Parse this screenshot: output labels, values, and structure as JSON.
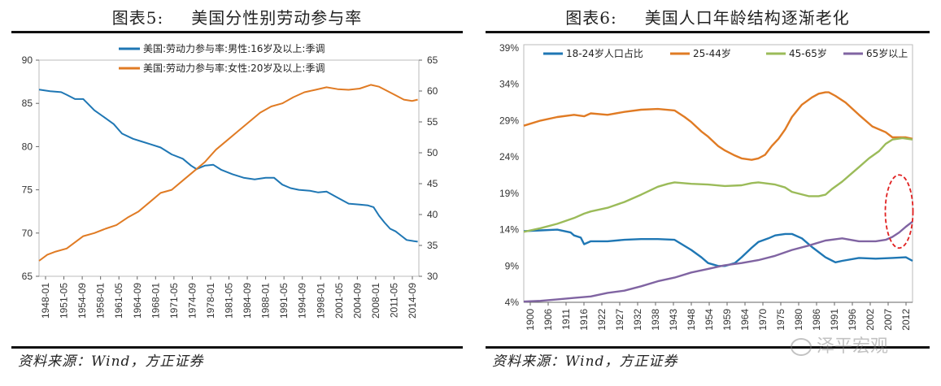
{
  "left": {
    "title_num": "图表5:",
    "title_text": "美国分性别劳动参与率",
    "source": "资料来源：Wind，方正证券"
  },
  "right": {
    "title_num": "图表6:",
    "title_text": "美国人口年龄结构逐渐老化",
    "source": "资料来源：Wind，方正证券"
  },
  "watermark": "泽平宏观",
  "colors": {
    "blue": "#1f77b4",
    "orange": "#e07b24",
    "green": "#9bbb59",
    "purple": "#8064a2",
    "annotation": "#e02020"
  },
  "chart_data": [
    {
      "type": "line",
      "title": "美国分性别劳动参与率",
      "x_ticks": [
        "1948-01",
        "1951-05",
        "1954-09",
        "1958-01",
        "1961-05",
        "1964-09",
        "1968-01",
        "1971-05",
        "1974-09",
        "1978-01",
        "1981-05",
        "1984-09",
        "1988-01",
        "1991-05",
        "1994-09",
        "1998-01",
        "2001-05",
        "2004-09",
        "2008-01",
        "2011-05",
        "2014-09"
      ],
      "xlim": [
        1948.0,
        2016.7
      ],
      "y_left": {
        "lim": [
          65,
          90
        ],
        "ticks": [
          65,
          70,
          75,
          80,
          85,
          90
        ]
      },
      "y_right": {
        "lim": [
          30,
          65
        ],
        "ticks": [
          30,
          35,
          40,
          45,
          50,
          55,
          60,
          65
        ]
      },
      "legend_position": "top",
      "grid": false,
      "series": [
        {
          "name": "美国:劳动力参与率:男性:16岁及以上:季调",
          "axis": "left",
          "color": "#1f77b4",
          "x": [
            1948.0,
            1950.0,
            1952.0,
            1953.0,
            1954.5,
            1956.0,
            1958.0,
            1960.0,
            1961.5,
            1963.0,
            1965.0,
            1966.5,
            1968.0,
            1970.0,
            1972.0,
            1974.0,
            1975.5,
            1976.5,
            1978.0,
            1979.5,
            1981.0,
            1983.0,
            1985.0,
            1987.0,
            1989.0,
            1990.5,
            1992.0,
            1993.5,
            1995.0,
            1997.0,
            1998.5,
            2000.0,
            2002.0,
            2004.0,
            2006.0,
            2007.5,
            2008.5,
            2009.5,
            2010.5,
            2011.5,
            2012.5,
            2013.5,
            2014.5,
            2015.5,
            2016.5
          ],
          "y": [
            86.6,
            86.4,
            86.3,
            86.0,
            85.5,
            85.5,
            84.2,
            83.3,
            82.6,
            81.5,
            80.9,
            80.6,
            80.3,
            79.9,
            79.1,
            78.6,
            77.8,
            77.4,
            77.8,
            77.9,
            77.3,
            76.8,
            76.4,
            76.2,
            76.4,
            76.4,
            75.6,
            75.2,
            75.0,
            74.9,
            74.7,
            74.8,
            74.1,
            73.4,
            73.3,
            73.2,
            73.0,
            72.0,
            71.2,
            70.5,
            70.2,
            69.7,
            69.2,
            69.1,
            69.0
          ]
        },
        {
          "name": "美国:劳动力参与率:女性:20岁及以上:季调",
          "axis": "right",
          "color": "#e07b24",
          "x": [
            1948.0,
            1949.5,
            1951.0,
            1953.0,
            1954.5,
            1956.0,
            1958.0,
            1960.0,
            1962.0,
            1964.0,
            1966.0,
            1968.0,
            1970.0,
            1972.0,
            1974.0,
            1976.0,
            1978.0,
            1980.0,
            1982.0,
            1984.0,
            1986.0,
            1988.0,
            1990.0,
            1992.0,
            1994.0,
            1996.0,
            1998.0,
            2000.0,
            2002.0,
            2004.0,
            2006.0,
            2008.0,
            2009.5,
            2011.0,
            2012.5,
            2014.0,
            2015.5,
            2016.5
          ],
          "y": [
            32.5,
            33.5,
            34.0,
            34.5,
            35.5,
            36.5,
            37.0,
            37.7,
            38.3,
            39.5,
            40.5,
            42.0,
            43.5,
            44.0,
            45.5,
            47.0,
            48.5,
            50.5,
            52.0,
            53.5,
            55.0,
            56.5,
            57.5,
            58.0,
            59.0,
            59.8,
            60.2,
            60.6,
            60.3,
            60.2,
            60.4,
            61.0,
            60.7,
            60.0,
            59.3,
            58.6,
            58.4,
            58.6
          ]
        }
      ]
    },
    {
      "type": "line",
      "title": "美国人口年龄结构逐渐老化",
      "x_ticks": [
        "1900",
        "1906",
        "1911",
        "1916",
        "1922",
        "1927",
        "1932",
        "1938",
        "1943",
        "1948",
        "1954",
        "1959",
        "1964",
        "1970",
        "1975",
        "1980",
        "1986",
        "1991",
        "1996",
        "2002",
        "2007",
        "2012"
      ],
      "xlim": [
        1900,
        2016
      ],
      "ylim": [
        4,
        39
      ],
      "y_ticks": [
        "4%",
        "9%",
        "14%",
        "19%",
        "24%",
        "29%",
        "34%",
        "39%"
      ],
      "y_tick_values": [
        4,
        9,
        14,
        19,
        24,
        29,
        34,
        39
      ],
      "legend_position": "top",
      "grid": false,
      "series": [
        {
          "name": "18-24岁人口占比",
          "color": "#1f77b4",
          "x": [
            1900,
            1905,
            1910,
            1914,
            1915,
            1917,
            1918,
            1920,
            1925,
            1930,
            1935,
            1940,
            1945,
            1950,
            1953,
            1955,
            1958,
            1960,
            1963,
            1965,
            1968,
            1970,
            1973,
            1975,
            1978,
            1980,
            1983,
            1986,
            1990,
            1993,
            1995,
            2000,
            2005,
            2010,
            2014,
            2016
          ],
          "y": [
            13.8,
            13.9,
            14.0,
            13.6,
            13.2,
            12.9,
            12.0,
            12.4,
            12.4,
            12.6,
            12.7,
            12.7,
            12.6,
            11.2,
            10.2,
            9.4,
            9.0,
            9.0,
            9.4,
            10.2,
            11.5,
            12.3,
            12.8,
            13.2,
            13.4,
            13.4,
            12.8,
            11.6,
            10.2,
            9.5,
            9.7,
            10.1,
            10.0,
            10.1,
            10.2,
            9.7
          ]
        },
        {
          "name": "25-44岁",
          "color": "#e07b24",
          "x": [
            1900,
            1905,
            1910,
            1915,
            1918,
            1920,
            1925,
            1930,
            1935,
            1940,
            1945,
            1948,
            1950,
            1953,
            1955,
            1958,
            1960,
            1963,
            1965,
            1968,
            1970,
            1972,
            1974,
            1976,
            1978,
            1980,
            1983,
            1986,
            1988,
            1990,
            1991,
            1993,
            1996,
            2000,
            2004,
            2008,
            2010,
            2014,
            2016
          ],
          "y": [
            28.3,
            29.0,
            29.5,
            29.8,
            29.6,
            30.0,
            29.8,
            30.2,
            30.5,
            30.6,
            30.4,
            29.5,
            28.8,
            27.5,
            26.8,
            25.5,
            24.9,
            24.2,
            23.8,
            23.6,
            23.8,
            24.3,
            25.5,
            26.5,
            27.8,
            29.5,
            31.2,
            32.2,
            32.7,
            32.9,
            32.9,
            32.4,
            31.5,
            29.8,
            28.2,
            27.4,
            26.7,
            26.7,
            26.5
          ]
        },
        {
          "name": "45-65岁",
          "color": "#9bbb59",
          "x": [
            1900,
            1905,
            1910,
            1915,
            1918,
            1920,
            1925,
            1930,
            1935,
            1940,
            1943,
            1945,
            1950,
            1955,
            1960,
            1965,
            1968,
            1970,
            1975,
            1978,
            1980,
            1985,
            1988,
            1990,
            1992,
            1995,
            1998,
            2000,
            2003,
            2006,
            2008,
            2010,
            2013,
            2016
          ],
          "y": [
            13.7,
            14.2,
            14.8,
            15.6,
            16.2,
            16.5,
            17.0,
            17.8,
            18.8,
            19.9,
            20.3,
            20.5,
            20.3,
            20.2,
            20.0,
            20.1,
            20.4,
            20.5,
            20.2,
            19.8,
            19.2,
            18.6,
            18.6,
            18.8,
            19.6,
            20.6,
            21.8,
            22.6,
            23.8,
            24.8,
            25.8,
            26.4,
            26.6,
            26.4
          ]
        },
        {
          "name": "65岁以上",
          "color": "#8064a2",
          "x": [
            1900,
            1905,
            1910,
            1915,
            1920,
            1925,
            1930,
            1935,
            1940,
            1945,
            1950,
            1955,
            1960,
            1965,
            1970,
            1975,
            1980,
            1985,
            1990,
            1995,
            2000,
            2005,
            2008,
            2010,
            2012,
            2014,
            2016
          ],
          "y": [
            4.1,
            4.2,
            4.4,
            4.6,
            4.8,
            5.3,
            5.6,
            6.2,
            6.9,
            7.4,
            8.1,
            8.6,
            9.1,
            9.4,
            9.8,
            10.4,
            11.2,
            11.8,
            12.5,
            12.8,
            12.4,
            12.4,
            12.6,
            13.0,
            13.6,
            14.4,
            15.1
          ]
        }
      ],
      "annotation": {
        "shape": "dashed-ellipse",
        "color": "#e02020",
        "x": 2012,
        "y": 16.5
      }
    }
  ]
}
